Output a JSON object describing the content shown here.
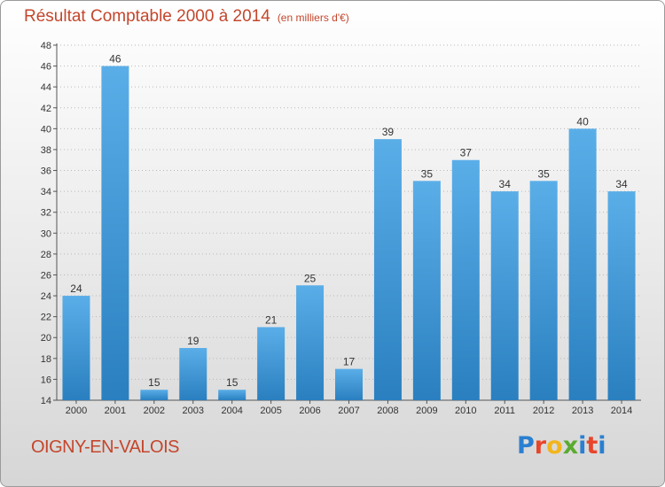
{
  "header": {
    "title": "Résultat Comptable 2000 à 2014",
    "unit": "(en milliers d'€)"
  },
  "footer": {
    "town": "OIGNY-EN-VALOIS",
    "brand": "Proxiti",
    "brand_colors": [
      "#2a7fd0",
      "#e8462a",
      "#f2b51c",
      "#5aab2f",
      "#2a7fd0",
      "#e8462a"
    ]
  },
  "colors": {
    "bar_top": "#5aaee8",
    "bar_bottom": "#2a7fbf",
    "title": "#c4462c",
    "grid": "#b9b9b9"
  },
  "chart_data": {
    "type": "bar",
    "title": "Résultat Comptable 2000 à 2014",
    "subtitle": "(en milliers d'€)",
    "xlabel": "",
    "ylabel": "",
    "categories": [
      "2000",
      "2001",
      "2002",
      "2003",
      "2004",
      "2005",
      "2006",
      "2007",
      "2008",
      "2009",
      "2010",
      "2011",
      "2012",
      "2013",
      "2014"
    ],
    "values": [
      24,
      46,
      15,
      19,
      15,
      21,
      25,
      17,
      39,
      35,
      37,
      34,
      35,
      40,
      34
    ],
    "ylim": [
      14,
      48
    ],
    "yticks": [
      14,
      16,
      18,
      20,
      22,
      24,
      26,
      28,
      30,
      32,
      34,
      36,
      38,
      40,
      42,
      44,
      46,
      48
    ],
    "grid": true,
    "data_labels": true
  }
}
